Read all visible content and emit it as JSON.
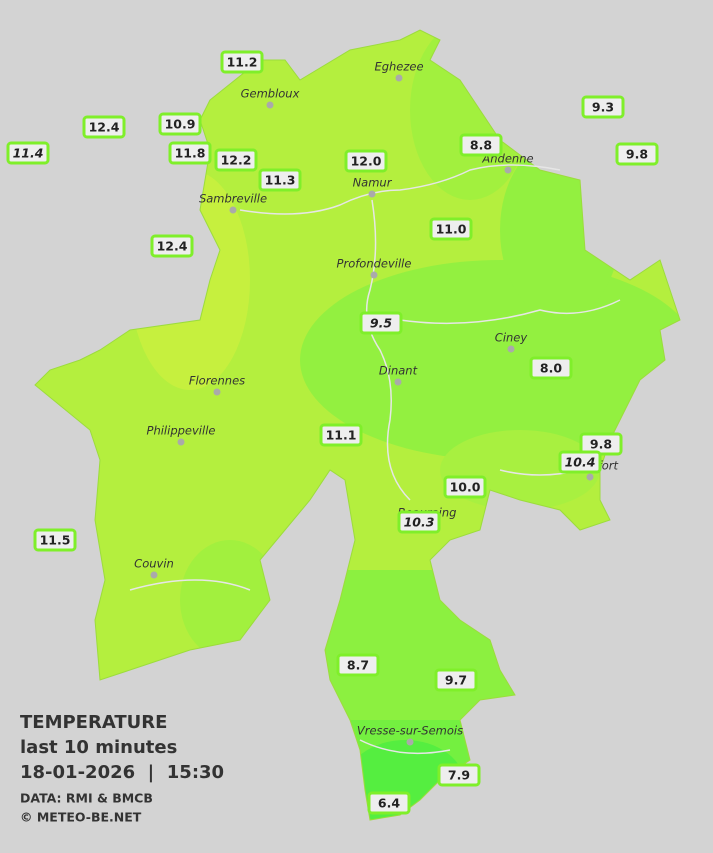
{
  "title": "TEMPERATURE",
  "subtitle": "last 10 minutes",
  "datetime": "18-01-2026  |  15:30",
  "source": "DATA: RMI & BMCB",
  "copyright": "© METEO-BE.NET",
  "cities": [
    "Eghezee",
    "Gembloux",
    "Andenne",
    "Namur",
    "Sambreville",
    "Profondeville",
    "Ciney",
    "Florennes",
    "Dinant",
    "Philippeville",
    "Rochefort",
    "Beauraing",
    "Couvin",
    "Vresse-sur-Semois"
  ],
  "stations": [
    "11.2",
    "12.4",
    "10.9",
    "11.4",
    "11.8",
    "12.2",
    "11.3",
    "12.0",
    "8.8",
    "9.3",
    "9.8",
    "11.0",
    "12.4",
    "9.5",
    "8.0",
    "11.1",
    "9.8",
    "10.4",
    "10.0",
    "10.3",
    "11.5",
    "8.7",
    "9.7",
    "7.9",
    "6.4"
  ]
}
